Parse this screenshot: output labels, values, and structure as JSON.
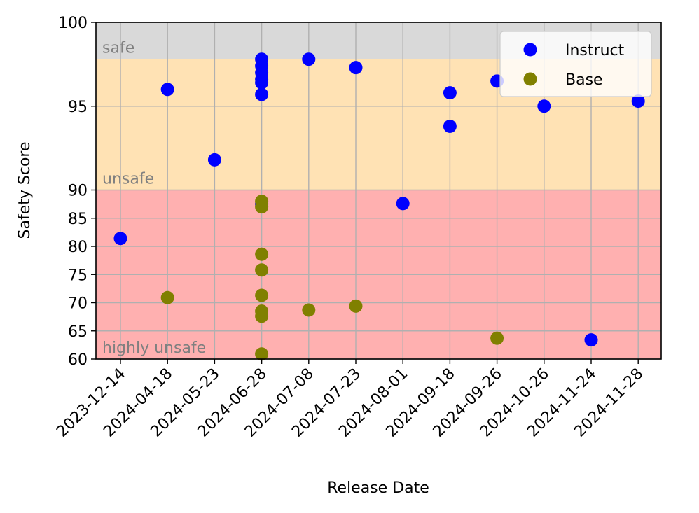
{
  "chart_data": {
    "type": "scatter",
    "xlabel": "Release Date",
    "ylabel": "Safety Score",
    "x_categories": [
      "2023-12-14",
      "2024-04-18",
      "2024-05-23",
      "2024-06-28",
      "2024-07-08",
      "2024-07-23",
      "2024-08-01",
      "2024-09-18",
      "2024-09-26",
      "2024-10-26",
      "2024-11-24",
      "2024-11-28"
    ],
    "y_ticks": [
      60,
      65,
      70,
      75,
      80,
      85,
      90,
      95,
      100
    ],
    "ylim": [
      60,
      100
    ],
    "y_scale": "piecewise: 60-90 expanded, 90-100 compressed",
    "grid": true,
    "legend_position": "top-right",
    "bands": [
      {
        "label": "safe",
        "from": 97.8,
        "to": 100,
        "color": "#d9d9d9"
      },
      {
        "label": "unsafe",
        "from": 90,
        "to": 97.8,
        "color": "#ffe2b4"
      },
      {
        "label": "highly unsafe",
        "from": 60,
        "to": 90,
        "color": "#ffb0b0"
      }
    ],
    "series": [
      {
        "name": "Instruct",
        "color": "#0000ff",
        "points": [
          {
            "x": "2023-12-14",
            "y": 81.4
          },
          {
            "x": "2024-04-18",
            "y": 96.0
          },
          {
            "x": "2024-05-23",
            "y": 91.8
          },
          {
            "x": "2024-06-28",
            "y": 97.8
          },
          {
            "x": "2024-06-28",
            "y": 97.4
          },
          {
            "x": "2024-06-28",
            "y": 97.0
          },
          {
            "x": "2024-06-28",
            "y": 96.6
          },
          {
            "x": "2024-06-28",
            "y": 96.4
          },
          {
            "x": "2024-06-28",
            "y": 95.7
          },
          {
            "x": "2024-06-28",
            "y": 87.5
          },
          {
            "x": "2024-07-08",
            "y": 97.8
          },
          {
            "x": "2024-07-23",
            "y": 97.3
          },
          {
            "x": "2024-08-01",
            "y": 87.6
          },
          {
            "x": "2024-09-18",
            "y": 95.8
          },
          {
            "x": "2024-09-18",
            "y": 93.8
          },
          {
            "x": "2024-09-26",
            "y": 96.5
          },
          {
            "x": "2024-10-26",
            "y": 95.0
          },
          {
            "x": "2024-11-24",
            "y": 63.4
          },
          {
            "x": "2024-11-28",
            "y": 95.3
          }
        ]
      },
      {
        "name": "Base",
        "color": "#808000",
        "points": [
          {
            "x": "2024-04-18",
            "y": 70.9
          },
          {
            "x": "2024-06-28",
            "y": 88.0
          },
          {
            "x": "2024-06-28",
            "y": 87.0
          },
          {
            "x": "2024-06-28",
            "y": 78.6
          },
          {
            "x": "2024-06-28",
            "y": 75.8
          },
          {
            "x": "2024-06-28",
            "y": 71.3
          },
          {
            "x": "2024-06-28",
            "y": 68.5
          },
          {
            "x": "2024-06-28",
            "y": 67.6
          },
          {
            "x": "2024-06-28",
            "y": 60.9
          },
          {
            "x": "2024-07-08",
            "y": 68.7
          },
          {
            "x": "2024-07-23",
            "y": 69.4
          },
          {
            "x": "2024-09-26",
            "y": 63.7
          }
        ]
      }
    ]
  }
}
